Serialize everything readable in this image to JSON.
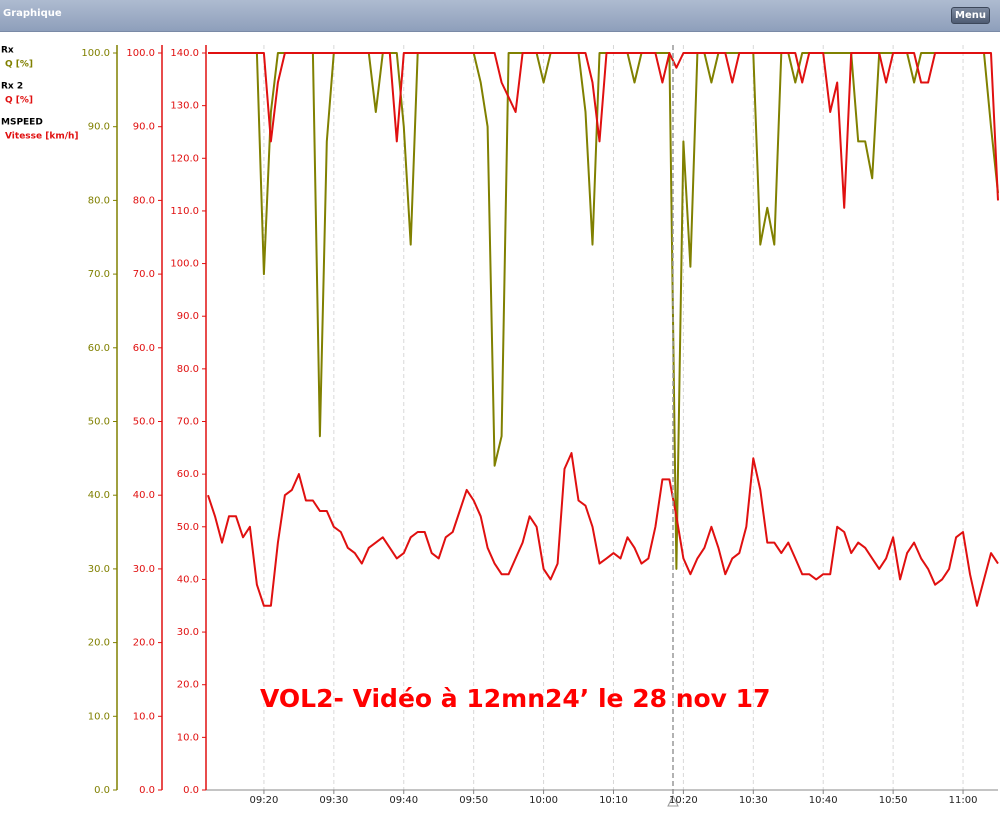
{
  "header": {
    "title": "Graphique",
    "menu": "Menu"
  },
  "chart_data": {
    "type": "line",
    "annotation": "VOL2- Vidéo à 12mn24’ le 28 nov 17",
    "grid": true,
    "x": [
      "09:12",
      "09:13",
      "09:14",
      "09:15",
      "09:16",
      "09:17",
      "09:18",
      "09:19",
      "09:20",
      "09:21",
      "09:22",
      "09:23",
      "09:24",
      "09:25",
      "09:26",
      "09:27",
      "09:28",
      "09:29",
      "09:30",
      "09:31",
      "09:32",
      "09:33",
      "09:34",
      "09:35",
      "09:36",
      "09:37",
      "09:38",
      "09:39",
      "09:40",
      "09:41",
      "09:42",
      "09:43",
      "09:44",
      "09:45",
      "09:46",
      "09:47",
      "09:48",
      "09:49",
      "09:50",
      "09:51",
      "09:52",
      "09:53",
      "09:54",
      "09:55",
      "09:56",
      "09:57",
      "09:58",
      "09:59",
      "10:00",
      "10:01",
      "10:02",
      "10:03",
      "10:04",
      "10:05",
      "10:06",
      "10:07",
      "10:08",
      "10:09",
      "10:10",
      "10:11",
      "10:12",
      "10:13",
      "10:14",
      "10:15",
      "10:16",
      "10:17",
      "10:18",
      "10:19",
      "10:20",
      "10:21",
      "10:22",
      "10:23",
      "10:24",
      "10:25",
      "10:26",
      "10:27",
      "10:28",
      "10:29",
      "10:30",
      "10:31",
      "10:32",
      "10:33",
      "10:34",
      "10:35",
      "10:36",
      "10:37",
      "10:38",
      "10:39",
      "10:40",
      "10:41",
      "10:42",
      "10:43",
      "10:44",
      "10:45",
      "10:46",
      "10:47",
      "10:48",
      "10:49",
      "10:50",
      "10:51",
      "10:52",
      "10:53",
      "10:54",
      "10:55",
      "10:56",
      "10:57",
      "10:58",
      "10:59",
      "11:00",
      "11:01",
      "11:02",
      "11:03",
      "11:04",
      "11:05"
    ],
    "xlim": [
      "09:12",
      "11:05"
    ],
    "xticks": [
      "09:20",
      "09:30",
      "09:40",
      "09:50",
      "10:00",
      "10:10",
      "10:20",
      "10:30",
      "10:40",
      "10:50",
      "11:00"
    ],
    "axes": [
      {
        "label": "Q [%]",
        "color": "#808000",
        "ylim": [
          0,
          100
        ],
        "yticks": [
          {
            "value": 0,
            "label": "0.0"
          },
          {
            "value": 10,
            "label": "10.0"
          },
          {
            "value": 20,
            "label": "20.0"
          },
          {
            "value": 30,
            "label": "30.0"
          },
          {
            "value": 40,
            "label": "40.0"
          },
          {
            "value": 50,
            "label": "50.0"
          },
          {
            "value": 60,
            "label": "60.0"
          },
          {
            "value": 70,
            "label": "70.0"
          },
          {
            "value": 80,
            "label": "80.0"
          },
          {
            "value": 90,
            "label": "90.0"
          },
          {
            "value": 100,
            "label": "100.0"
          }
        ]
      },
      {
        "label": "Q [%]",
        "color": "#e01010",
        "ylim": [
          0,
          100
        ],
        "yticks": [
          {
            "value": 0,
            "label": "0.0"
          },
          {
            "value": 10,
            "label": "10.0"
          },
          {
            "value": 20,
            "label": "20.0"
          },
          {
            "value": 30,
            "label": "30.0"
          },
          {
            "value": 40,
            "label": "40.0"
          },
          {
            "value": 50,
            "label": "50.0"
          },
          {
            "value": 60,
            "label": "60.0"
          },
          {
            "value": 70,
            "label": "70.0"
          },
          {
            "value": 80,
            "label": "80.0"
          },
          {
            "value": 90,
            "label": "90.0"
          },
          {
            "value": 100,
            "label": "100.0"
          }
        ]
      },
      {
        "label": "Vitesse [km/h]",
        "color": "#e01010",
        "ylim": [
          0,
          140
        ],
        "yticks": [
          {
            "value": 0,
            "label": "0.0"
          },
          {
            "value": 10,
            "label": "10.0"
          },
          {
            "value": 20,
            "label": "20.0"
          },
          {
            "value": 30,
            "label": "30.0"
          },
          {
            "value": 40,
            "label": "40.0"
          },
          {
            "value": 50,
            "label": "50.0"
          },
          {
            "value": 60,
            "label": "60.0"
          },
          {
            "value": 70,
            "label": "70.0"
          },
          {
            "value": 80,
            "label": "80.0"
          },
          {
            "value": 90,
            "label": "90.0"
          },
          {
            "value": 100,
            "label": "100.0"
          },
          {
            "value": 110,
            "label": "110.0"
          },
          {
            "value": 120,
            "label": "120.0"
          },
          {
            "value": 130,
            "label": "130.0"
          },
          {
            "value": 140,
            "label": "140.0"
          }
        ]
      }
    ],
    "series": [
      {
        "name": "Rx",
        "axis": 0,
        "color": "#808000",
        "values": [
          100,
          100,
          100,
          100,
          100,
          100,
          100,
          100,
          70,
          92,
          100,
          100,
          100,
          100,
          100,
          100,
          48,
          88,
          100,
          100,
          100,
          100,
          100,
          100,
          92,
          100,
          100,
          100,
          90,
          74,
          100,
          100,
          100,
          100,
          100,
          100,
          100,
          100,
          100,
          96,
          90,
          44,
          48,
          100,
          100,
          100,
          100,
          100,
          96,
          100,
          100,
          100,
          100,
          100,
          92,
          74,
          100,
          100,
          100,
          100,
          100,
          96,
          100,
          100,
          100,
          100,
          100,
          30,
          88,
          71,
          100,
          100,
          96,
          100,
          100,
          100,
          100,
          100,
          100,
          74,
          79,
          74,
          100,
          100,
          96,
          100,
          100,
          100,
          100,
          100,
          100,
          100,
          100,
          88,
          88,
          83,
          100,
          100,
          100,
          100,
          100,
          96,
          100,
          100,
          100,
          100,
          100,
          100,
          100,
          100,
          100,
          100,
          90,
          81
        ]
      },
      {
        "name": "Rx 2",
        "axis": 1,
        "color": "#e01010",
        "values": [
          100,
          100,
          100,
          100,
          100,
          100,
          100,
          100,
          100,
          88,
          96,
          100,
          100,
          100,
          100,
          100,
          100,
          100,
          100,
          100,
          100,
          100,
          100,
          100,
          100,
          100,
          100,
          88,
          100,
          100,
          100,
          100,
          100,
          100,
          100,
          100,
          100,
          100,
          100,
          100,
          100,
          100,
          96,
          94,
          92,
          100,
          100,
          100,
          100,
          100,
          100,
          100,
          100,
          100,
          100,
          96,
          88,
          100,
          100,
          100,
          100,
          100,
          100,
          100,
          100,
          96,
          100,
          98,
          100,
          100,
          100,
          100,
          100,
          100,
          100,
          96,
          100,
          100,
          100,
          100,
          100,
          100,
          100,
          100,
          100,
          96,
          100,
          100,
          100,
          92,
          96,
          79,
          100,
          100,
          100,
          100,
          100,
          96,
          100,
          100,
          100,
          100,
          96,
          96,
          100,
          100,
          100,
          100,
          100,
          100,
          100,
          100,
          100,
          80
        ]
      },
      {
        "name": "MSPEED",
        "axis": 2,
        "color": "#e01010",
        "values": [
          56,
          52,
          47,
          52,
          52,
          48,
          50,
          39,
          35,
          35,
          47,
          56,
          57,
          60,
          55,
          55,
          53,
          53,
          50,
          49,
          46,
          45,
          43,
          46,
          47,
          48,
          46,
          44,
          45,
          48,
          49,
          49,
          45,
          44,
          48,
          49,
          53,
          57,
          55,
          52,
          46,
          43,
          41,
          41,
          44,
          47,
          52,
          50,
          42,
          40,
          43,
          61,
          64,
          55,
          54,
          50,
          43,
          44,
          45,
          44,
          48,
          46,
          43,
          44,
          50,
          59,
          59,
          52,
          44,
          41,
          44,
          46,
          50,
          46,
          41,
          44,
          45,
          50,
          63,
          57,
          47,
          47,
          45,
          47,
          44,
          41,
          41,
          40,
          41,
          41,
          50,
          49,
          45,
          47,
          46,
          44,
          42,
          44,
          48,
          40,
          45,
          47,
          44,
          42,
          39,
          40,
          42,
          48,
          49,
          41,
          35,
          40,
          45,
          43
        ]
      }
    ]
  }
}
